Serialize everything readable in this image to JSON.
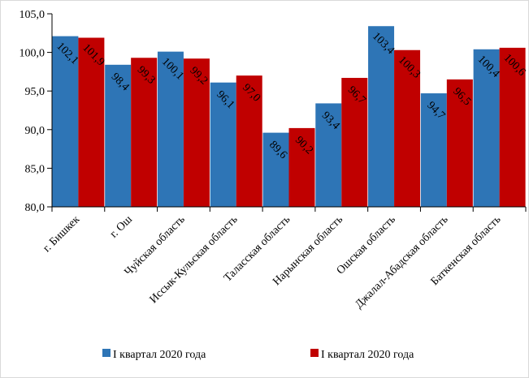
{
  "chart_data": {
    "type": "bar",
    "categories": [
      "г. Бишкек",
      "г. Ош",
      "Чуйская область",
      "Иссык-Кульская область",
      "Таласская область",
      "Нарынская область",
      "Ошская область",
      "Джалал-Абадская область",
      "Баткенская область"
    ],
    "series": [
      {
        "name": "I квартал 2020 года",
        "color": "#2e75b6",
        "values": [
          102.1,
          98.4,
          100.1,
          96.1,
          89.6,
          93.4,
          103.4,
          94.7,
          100.4
        ],
        "labels": [
          "102,1",
          "98,4",
          "100,1",
          "96,1",
          "89,6",
          "93,4",
          "103,4",
          "94,7",
          "100,4"
        ]
      },
      {
        "name": "I квартал 2020 года",
        "color": "#c00000",
        "values": [
          101.9,
          99.3,
          99.2,
          97.0,
          90.2,
          96.7,
          100.3,
          96.5,
          100.6
        ],
        "labels": [
          "101,9",
          "99,3",
          "99,2",
          "97,0",
          "90,2",
          "96,7",
          "100,3",
          "96,5",
          "100,6"
        ]
      }
    ],
    "ylim": [
      80,
      105
    ],
    "yticks": [
      80,
      85,
      90,
      95,
      100,
      105
    ],
    "ytick_labels": [
      "80,0",
      "85,0",
      "90,0",
      "95,0",
      "100,0",
      "105,0"
    ],
    "title": "",
    "xlabel": "",
    "ylabel": "",
    "grid": false,
    "legend_position": "bottom"
  }
}
